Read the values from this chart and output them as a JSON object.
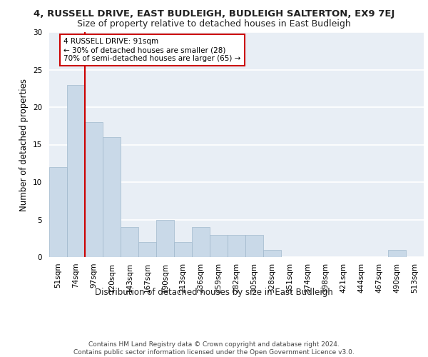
{
  "title": "4, RUSSELL DRIVE, EAST BUDLEIGH, BUDLEIGH SALTERTON, EX9 7EJ",
  "subtitle": "Size of property relative to detached houses in East Budleigh",
  "xlabel": "Distribution of detached houses by size in East Budleigh",
  "ylabel": "Number of detached properties",
  "categories": [
    "51sqm",
    "74sqm",
    "97sqm",
    "120sqm",
    "143sqm",
    "167sqm",
    "190sqm",
    "213sqm",
    "236sqm",
    "259sqm",
    "282sqm",
    "305sqm",
    "328sqm",
    "351sqm",
    "374sqm",
    "398sqm",
    "421sqm",
    "444sqm",
    "467sqm",
    "490sqm",
    "513sqm"
  ],
  "values": [
    12,
    23,
    18,
    16,
    4,
    2,
    5,
    2,
    4,
    3,
    3,
    3,
    1,
    0,
    0,
    0,
    0,
    0,
    0,
    1,
    0
  ],
  "bar_color": "#c9d9e8",
  "bar_edge_color": "#a0b8cc",
  "annotation_text": "4 RUSSELL DRIVE: 91sqm\n← 30% of detached houses are smaller (28)\n70% of semi-detached houses are larger (65) →",
  "annotation_box_color": "white",
  "annotation_box_edge": "#cc0000",
  "vline_color": "#cc0000",
  "vline_x_index": 1.5,
  "ylim": [
    0,
    30
  ],
  "yticks": [
    0,
    5,
    10,
    15,
    20,
    25,
    30
  ],
  "footer": "Contains HM Land Registry data © Crown copyright and database right 2024.\nContains public sector information licensed under the Open Government Licence v3.0.",
  "bg_color": "#e8eef5",
  "grid_color": "#ffffff",
  "title_fontsize": 9.5,
  "subtitle_fontsize": 9,
  "axis_label_fontsize": 8.5,
  "tick_fontsize": 7.5,
  "footer_fontsize": 6.5,
  "annotation_fontsize": 7.5
}
